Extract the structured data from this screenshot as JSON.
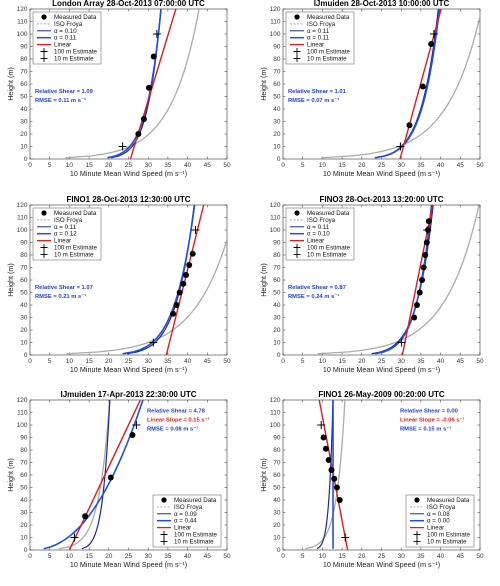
{
  "figure": {
    "background": "#ffffff"
  },
  "chart_data": [
    {
      "type": "line",
      "title": "London Array 28-Oct-2013 07:00:00 UTC",
      "xlabel": "10 Minute Mean Wind Speed (m s⁻¹)",
      "ylabel": "Height (m)",
      "xlim": [
        0,
        50
      ],
      "ylim": [
        0,
        120
      ],
      "xticks": [
        0,
        5,
        10,
        15,
        20,
        25,
        30,
        35,
        40,
        45,
        50
      ],
      "yticks": [
        0,
        10,
        20,
        30,
        40,
        50,
        60,
        70,
        80,
        90,
        100,
        110,
        120
      ],
      "legend": "top-left",
      "legend_entries": [
        "Measured Data",
        "ISO Froya",
        "α = 0.10",
        "α = 0.11",
        "Linear",
        "100 m Estimate",
        "10 m Estimate"
      ],
      "measured": {
        "x": [
          27.5,
          28.9,
          30.2,
          31.4
        ],
        "y": [
          20,
          32,
          57,
          82
        ]
      },
      "power_law": [
        {
          "alpha": 0.1,
          "u10": 25.9,
          "color": "#1b2a8a",
          "width": 1.2
        },
        {
          "alpha": 0.11,
          "u10": 25.3,
          "color": "#1f4fe0",
          "width": 1.6
        }
      ],
      "iso": {
        "u0": 25.3,
        "c": 0.28,
        "color": "#aaaaaa"
      },
      "linear": {
        "slope": 0.096,
        "intercept": 25.5,
        "color": "#e01b1b"
      },
      "estimates": {
        "x": [
          23.5,
          32.2
        ],
        "y": [
          10,
          100
        ]
      },
      "annotations": [
        {
          "text": "Relative Shear = 1.09",
          "color": "#1f3fd0"
        },
        {
          "text": "RMSE = 0.11 m s⁻¹",
          "color": "#1f3fd0"
        }
      ],
      "annotation_anchor": "left"
    },
    {
      "type": "line",
      "title": "IJmuiden 28-Oct-2013 10:00:00 UTC",
      "xlabel": "10 Minute Mean Wind Speed (m s⁻¹)",
      "ylabel": "Height (m)",
      "xlim": [
        0,
        50
      ],
      "ylim": [
        0,
        120
      ],
      "xticks": [
        0,
        5,
        10,
        15,
        20,
        25,
        30,
        35,
        40,
        45,
        50
      ],
      "yticks": [
        0,
        10,
        20,
        30,
        40,
        50,
        60,
        70,
        80,
        90,
        100,
        110,
        120
      ],
      "legend": "top-left",
      "legend_entries": [
        "Measured Data",
        "ISO Froya",
        "α = 0.11",
        "α = 0.11",
        "Linear",
        "100 m Estimate",
        "10 m Estimate"
      ],
      "measured": {
        "x": [
          32.1,
          35.5,
          37.6
        ],
        "y": [
          27,
          58,
          92
        ]
      },
      "power_law": [
        {
          "alpha": 0.11,
          "u10": 30.0,
          "color": "#1b2a8a",
          "width": 1.2
        },
        {
          "alpha": 0.11,
          "u10": 30.2,
          "color": "#1f4fe0",
          "width": 1.6
        }
      ],
      "iso": {
        "u0": 29.3,
        "c": 0.29,
        "color": "#aaaaaa"
      },
      "linear": {
        "slope": 0.087,
        "intercept": 29.7,
        "color": "#e01b1b"
      },
      "estimates": {
        "x": [
          29.8,
          38.3
        ],
        "y": [
          10,
          100
        ]
      },
      "annotations": [
        {
          "text": "Relative Shear = 1.01",
          "color": "#1f3fd0"
        },
        {
          "text": "RMSE = 0.07 m s⁻¹",
          "color": "#1f3fd0"
        }
      ],
      "annotation_anchor": "left"
    },
    {
      "type": "line",
      "title": "FINO1 28-Oct-2013 12:30:00 UTC",
      "xlabel": "10 Minute Mean Wind Speed (m s⁻¹)",
      "ylabel": "Height (m)",
      "xlim": [
        0,
        50
      ],
      "ylim": [
        0,
        120
      ],
      "xticks": [
        0,
        5,
        10,
        15,
        20,
        25,
        30,
        35,
        40,
        45,
        50
      ],
      "yticks": [
        0,
        10,
        20,
        30,
        40,
        50,
        60,
        70,
        80,
        90,
        100,
        110,
        120
      ],
      "legend": "top-left",
      "legend_entries": [
        "Measured Data",
        "ISO Froya",
        "α = 0.11",
        "α = 0.12",
        "Linear",
        "100 m Estimate",
        "10 m Estimate"
      ],
      "measured": {
        "x": [
          36.3,
          37.2,
          38.0,
          38.9,
          39.6,
          40.4,
          41.3
        ],
        "y": [
          33,
          40,
          50,
          57,
          64,
          72,
          81
        ]
      },
      "power_law": [
        {
          "alpha": 0.11,
          "u10": 31.7,
          "color": "#1b2a8a",
          "width": 1.2
        },
        {
          "alpha": 0.12,
          "u10": 31.0,
          "color": "#1f4fe0",
          "width": 1.6
        }
      ],
      "iso": {
        "u0": 30.0,
        "c": 0.3,
        "color": "#aaaaaa"
      },
      "linear": {
        "slope": 0.079,
        "intercept": 34.6,
        "color": "#e01b1b"
      },
      "estimates": {
        "x": [
          31.3,
          42.0
        ],
        "y": [
          10,
          100
        ]
      },
      "annotations": [
        {
          "text": "Relative Shear = 1.07",
          "color": "#1f3fd0"
        },
        {
          "text": "RMSE = 0.21 m s⁻¹",
          "color": "#1f3fd0"
        }
      ],
      "annotation_anchor": "left"
    },
    {
      "type": "line",
      "title": "FINO3 28-Oct-2013 13:20:00 UTC",
      "xlabel": "10 Minute Mean Wind Speed (m s⁻¹)",
      "ylabel": "Height (m)",
      "xlim": [
        0,
        50
      ],
      "ylim": [
        0,
        120
      ],
      "xticks": [
        0,
        5,
        10,
        15,
        20,
        25,
        30,
        35,
        40,
        45,
        50
      ],
      "yticks": [
        0,
        10,
        20,
        30,
        40,
        50,
        60,
        70,
        80,
        90,
        100,
        110,
        120
      ],
      "legend": "top-left",
      "legend_entries": [
        "Measured Data",
        "ISO Froya",
        "α = 0.11",
        "α = 0.10",
        "Linear",
        "100 m Estimate",
        "10 m Estimate"
      ],
      "measured": {
        "x": [
          33.3,
          34.0,
          34.7,
          35.3,
          35.7,
          36.1,
          36.5,
          36.8,
          37.0
        ],
        "y": [
          30,
          40,
          50,
          60,
          70,
          80,
          90,
          100,
          107
        ]
      },
      "power_law": [
        {
          "alpha": 0.11,
          "u10": 29.0,
          "color": "#1b2a8a",
          "width": 1.2
        },
        {
          "alpha": 0.1,
          "u10": 29.4,
          "color": "#1f4fe0",
          "width": 1.6
        }
      ],
      "iso": {
        "u0": 28.5,
        "c": 0.3,
        "color": "#aaaaaa"
      },
      "linear": {
        "slope": 0.064,
        "intercept": 30.3,
        "color": "#e01b1b"
      },
      "estimates": {
        "x": [
          30.1,
          36.6
        ],
        "y": [
          10,
          100
        ]
      },
      "annotations": [
        {
          "text": "Relative Shear = 0.87",
          "color": "#1f3fd0"
        },
        {
          "text": "RMSE = 0.24 m s⁻¹",
          "color": "#1f3fd0"
        }
      ],
      "annotation_anchor": "left"
    },
    {
      "type": "line",
      "title": "IJmuiden 17-Apr-2013 22:30:00 UTC",
      "xlabel": "10 Minute Mean Wind Speed (m s⁻¹)",
      "ylabel": "Height (m)",
      "xlim": [
        0,
        50
      ],
      "ylim": [
        0,
        120
      ],
      "xticks": [
        0,
        5,
        10,
        15,
        20,
        25,
        30,
        35,
        40,
        45,
        50
      ],
      "yticks": [
        0,
        10,
        20,
        30,
        40,
        50,
        60,
        70,
        80,
        90,
        100,
        110,
        120
      ],
      "legend": "bottom-right",
      "legend_entries": [
        "Measured Data",
        "ISO Froya",
        "α = 0.09",
        "α = 0.44",
        "Linear",
        "100 m Estimate",
        "10 m Estimate"
      ],
      "measured": {
        "x": [
          14.0,
          20.5,
          26.0
        ],
        "y": [
          27,
          58,
          92
        ]
      },
      "power_law": [
        {
          "alpha": 0.09,
          "u10": 16.2,
          "color": "#1b2a8a",
          "width": 1.2
        },
        {
          "alpha": 0.44,
          "u10": 9.6,
          "color": "#1f4fe0",
          "width": 1.6
        }
      ],
      "iso": {
        "u0": 13.5,
        "c": 0.2,
        "color": "#aaaaaa"
      },
      "linear": {
        "slope": 0.15,
        "intercept": 10.0,
        "color": "#e01b1b"
      },
      "estimates": {
        "x": [
          11.3,
          27.0
        ],
        "y": [
          10,
          100
        ]
      },
      "annotations": [
        {
          "text": "Relative Shear = 4.78",
          "color": "#1f3fd0"
        },
        {
          "text": "Linear Slope = 0.15 s⁻¹",
          "color": "#e01b1b"
        },
        {
          "text": "RMSE = 0.08 m s⁻¹",
          "color": "#1f3fd0"
        }
      ],
      "annotation_anchor": "right"
    },
    {
      "type": "line",
      "title": "FINO1 26-May-2009 00:20:00 UTC",
      "xlabel": "10 Minute Mean Wind Speed (m s⁻¹)",
      "ylabel": "Height (m)",
      "xlim": [
        0,
        50
      ],
      "ylim": [
        0,
        120
      ],
      "xticks": [
        0,
        5,
        10,
        15,
        20,
        25,
        30,
        35,
        40,
        45,
        50
      ],
      "yticks": [
        0,
        10,
        20,
        30,
        40,
        50,
        60,
        70,
        80,
        90,
        100,
        110,
        120
      ],
      "legend": "bottom-right",
      "legend_entries": [
        "Measured Data",
        "ISO Froya",
        "α = 0.08",
        "α = 0.00",
        "Linear",
        "100 m Estimate",
        "10 m Estimate"
      ],
      "measured": {
        "x": [
          10.3,
          10.9,
          11.6,
          12.3,
          13.0,
          13.7,
          14.4
        ],
        "y": [
          90,
          81,
          72,
          64,
          57,
          50,
          40
        ]
      },
      "power_law": [
        {
          "alpha": 0.08,
          "u10": 10.4,
          "color": "#1b2a8a",
          "width": 1.2
        },
        {
          "alpha": 0.0,
          "u10": 12.7,
          "color": "#1f4fe0",
          "width": 1.6
        }
      ],
      "iso": {
        "u0": 10.5,
        "c": 0.2,
        "color": "#aaaaaa"
      },
      "linear": {
        "slope": -0.06,
        "intercept": 16.4,
        "color": "#e01b1b"
      },
      "estimates": {
        "x": [
          15.8,
          9.7
        ],
        "y": [
          10,
          100
        ]
      },
      "annotations": [
        {
          "text": "Relative Shear = 0.00",
          "color": "#1f3fd0"
        },
        {
          "text": "Linear Slope = -0.06 s⁻¹",
          "color": "#e01b1b"
        },
        {
          "text": "RMSE = 0.15 m s⁻¹",
          "color": "#1f3fd0"
        }
      ],
      "annotation_anchor": "right"
    }
  ]
}
